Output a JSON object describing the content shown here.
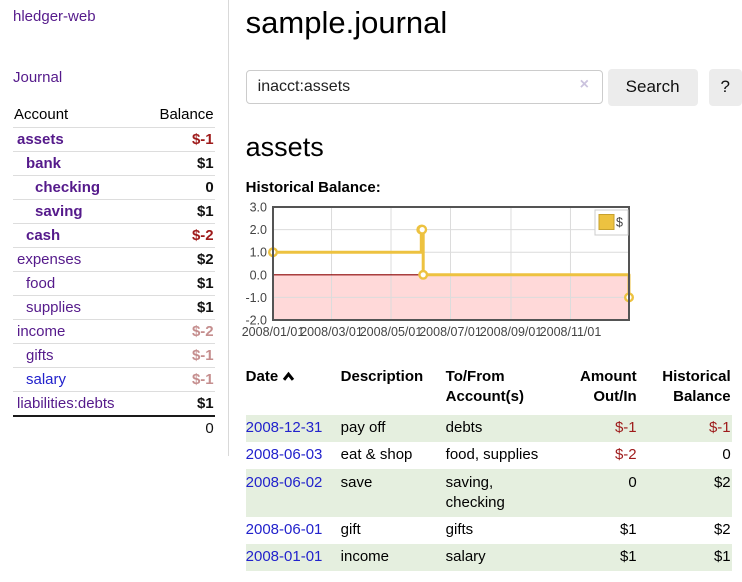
{
  "brand": {
    "label": "hledger-web"
  },
  "nav": {
    "journal_label": "Journal"
  },
  "sidebar": {
    "headers": {
      "account": "Account",
      "balance": "Balance"
    },
    "rows": [
      {
        "account": "assets",
        "balance": "$-1",
        "indent": 0,
        "emph": true,
        "link": "purple",
        "tone": "neg"
      },
      {
        "account": "bank",
        "balance": "$1",
        "indent": 1,
        "emph": true,
        "link": "purple",
        "tone": "pos"
      },
      {
        "account": "checking",
        "balance": "0",
        "indent": 2,
        "emph": true,
        "link": "purple",
        "tone": "pos"
      },
      {
        "account": "saving",
        "balance": "$1",
        "indent": 2,
        "emph": true,
        "link": "purple",
        "tone": "pos"
      },
      {
        "account": "cash",
        "balance": "$-2",
        "indent": 1,
        "emph": true,
        "link": "purple",
        "tone": "neg"
      },
      {
        "account": "expenses",
        "balance": "$2",
        "indent": 0,
        "emph": false,
        "link": "purple",
        "tone": "pos"
      },
      {
        "account": "food",
        "balance": "$1",
        "indent": 1,
        "emph": false,
        "link": "purple",
        "tone": "pos"
      },
      {
        "account": "supplies",
        "balance": "$1",
        "indent": 1,
        "emph": false,
        "link": "purple",
        "tone": "pos"
      },
      {
        "account": "income",
        "balance": "$-2",
        "indent": 0,
        "emph": false,
        "link": "purple",
        "tone": "negsoft"
      },
      {
        "account": "gifts",
        "balance": "$-1",
        "indent": 1,
        "emph": false,
        "link": "purple",
        "tone": "negsoft"
      },
      {
        "account": "salary",
        "balance": "$-1",
        "indent": 1,
        "emph": false,
        "link": "blue",
        "tone": "negsoft"
      },
      {
        "account": "liabilities:debts",
        "balance": "$1",
        "indent": 0,
        "emph": false,
        "link": "purple",
        "tone": "pos"
      }
    ],
    "total": "0"
  },
  "header": {
    "title": "sample.journal"
  },
  "search": {
    "value": "inacct:assets",
    "clear_icon": "×",
    "search_button": "Search",
    "help_button": "?"
  },
  "account_page": {
    "heading": "assets",
    "chart_title": "Historical Balance:"
  },
  "chart_data": {
    "type": "line",
    "title": "Historical Balance",
    "series": [
      {
        "name": "$",
        "color": "#edc240",
        "step": true,
        "points": [
          {
            "date": "2008-01-01",
            "value": 1
          },
          {
            "date": "2008-06-01",
            "value": 2
          },
          {
            "date": "2008-06-02",
            "value": 2
          },
          {
            "date": "2008-06-03",
            "value": 0
          },
          {
            "date": "2008-12-31",
            "value": -1
          }
        ]
      }
    ],
    "x_range": [
      "2008-01-01",
      "2008-12-31"
    ],
    "x_ticks": [
      "2008/01/01",
      "2008/03/01",
      "2008/05/01",
      "2008/07/01",
      "2008/09/01",
      "2008/11/01"
    ],
    "y_ticks": [
      3.0,
      2.0,
      1.0,
      0.0,
      -1.0,
      -2.0
    ],
    "ylim": [
      -2,
      3
    ],
    "grid": true,
    "legend": {
      "label": "$",
      "position": "top-right"
    },
    "negative_region_color": "#ffd9d9",
    "zero_line_color": "#8b0000"
  },
  "register": {
    "headers": {
      "date": "Date",
      "sort": "ascending",
      "description": "Description",
      "accounts": "To/From Account(s)",
      "amount": "Amount Out/In",
      "balance": "Historical Balance"
    },
    "rows": [
      {
        "date": "2008-12-31",
        "description": "pay off",
        "accounts": "debts",
        "amount": "$-1",
        "amount_neg": true,
        "balance": "$-1",
        "balance_neg": true,
        "shaded": true
      },
      {
        "date": "2008-06-03",
        "description": "eat & shop",
        "accounts": "food, supplies",
        "amount": "$-2",
        "amount_neg": true,
        "balance": "0",
        "balance_neg": false,
        "shaded": false
      },
      {
        "date": "2008-06-02",
        "description": "save",
        "accounts": "saving, checking",
        "amount": "0",
        "amount_neg": false,
        "balance": "$2",
        "balance_neg": false,
        "shaded": true
      },
      {
        "date": "2008-06-01",
        "description": "gift",
        "accounts": "gifts",
        "amount": "$1",
        "amount_neg": false,
        "balance": "$2",
        "balance_neg": false,
        "shaded": false
      },
      {
        "date": "2008-01-01",
        "description": "income",
        "accounts": "salary",
        "amount": "$1",
        "amount_neg": false,
        "balance": "$1",
        "balance_neg": false,
        "shaded": true
      }
    ]
  },
  "colors": {
    "accent_purple": "#551a8b",
    "link_blue": "#2222cc",
    "negative": "#9e1a1a",
    "negative_soft": "#c58e8e",
    "row_shade": "#e5efdf",
    "series_yellow": "#edc240",
    "negative_region": "#ffd9d9",
    "zero_line": "#8b0000"
  }
}
